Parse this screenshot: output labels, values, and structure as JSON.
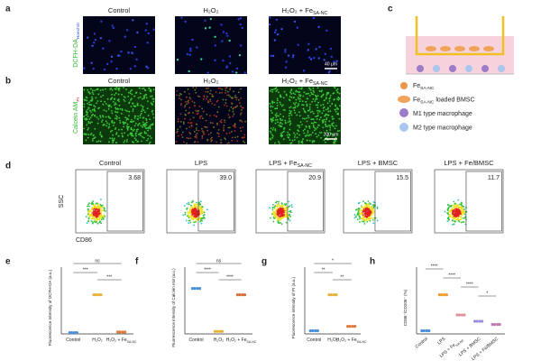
{
  "panels": {
    "a": {
      "label": "a",
      "titles": [
        [
          "Control"
        ],
        [
          "H₂O₂"
        ],
        [
          "H₂O₂ + Fe",
          "SA-NC"
        ]
      ],
      "ylabel": [
        "DCFH-DA",
        "Hoechst"
      ],
      "scale": "40 μm"
    },
    "b": {
      "label": "b",
      "titles": [
        [
          "Control"
        ],
        [
          "H₂O₂"
        ],
        [
          "H₂O₂ + Fe",
          "SA-NC"
        ]
      ],
      "ylabel": [
        "Calcein AM",
        "PI"
      ],
      "scale": "200 μm"
    },
    "c": {
      "label": "c",
      "legend": [
        [
          "Fe",
          "SA-NC"
        ],
        [
          "Fe",
          "SA-NC",
          " loaded BMSC"
        ],
        [
          "M1 type macrophage"
        ],
        [
          "M2 type macrophage"
        ]
      ]
    },
    "d": {
      "label": "d",
      "titles": [
        [
          "Control"
        ],
        [
          "LPS"
        ],
        [
          "LPS + Fe",
          "SA-NC"
        ],
        [
          "LPS + BMSC"
        ],
        [
          "LPS + Fe/BMSC"
        ]
      ],
      "values": [
        3.68,
        39,
        20.9,
        15.5,
        11.7
      ],
      "value_labels": [
        "3.68",
        "39.0",
        "20.9",
        "15.5",
        "11.7"
      ],
      "ylabel": "SSC",
      "xlabel": "CD86"
    },
    "e": {
      "label": "e",
      "ylabel": "Fluorescence intensity of DCFH-DA (a.u.)",
      "categories": [
        [
          "Control"
        ],
        [
          "H₂O₂"
        ],
        [
          "H₂O₂ + Fe",
          "SA-NC"
        ]
      ],
      "values": [
        0.02,
        0.62,
        0.03
      ],
      "ylim": [
        0,
        1
      ],
      "colors": [
        "#4a90d9",
        "#e8b23a",
        "#e07a3a"
      ],
      "significance": [
        "ns",
        "***",
        "***"
      ]
    },
    "f": {
      "label": "f",
      "ylabel": "Fluorescence intensity of Calcein AM (a.u.)",
      "categories": [
        [
          "Control"
        ],
        [
          "H₂O₂"
        ],
        [
          "H₂O₂ + Fe",
          "SA-NC"
        ]
      ],
      "values": [
        0.72,
        0.04,
        0.62
      ],
      "ylim": [
        0,
        1
      ],
      "colors": [
        "#4a90d9",
        "#e8b23a",
        "#d9703a"
      ],
      "significance": [
        "ns",
        "****",
        "****"
      ]
    },
    "g": {
      "label": "g",
      "ylabel": "Fluorescence intensity of PI (a.u.)",
      "categories": [
        [
          "Control"
        ],
        [
          "H₂O₂"
        ],
        [
          "H₂O₂ + Fe",
          "SA-NC"
        ]
      ],
      "values": [
        0.05,
        0.62,
        0.12
      ],
      "ylim": [
        0,
        1
      ],
      "colors": [
        "#4a90d9",
        "#e8b23a",
        "#e07a3a"
      ],
      "significance": [
        "*",
        "**",
        "**"
      ]
    },
    "h": {
      "label": "h",
      "ylabel": "CD86⁺/CD206⁺ (%)",
      "categories": [
        [
          "Control"
        ],
        [
          "LPS"
        ],
        [
          "LPS + Fe",
          "SA-NC"
        ],
        [
          "LPS + BMSC"
        ],
        [
          "LPS + Fe/BMSC"
        ]
      ],
      "values": [
        0.05,
        0.62,
        0.3,
        0.2,
        0.15
      ],
      "ylim": [
        0,
        1
      ],
      "colors": [
        "#4a90d9",
        "#f0a030",
        "#e0909a",
        "#9a90d8",
        "#c07ab0"
      ],
      "significance": [
        "****",
        "****",
        "****",
        "*"
      ]
    }
  }
}
